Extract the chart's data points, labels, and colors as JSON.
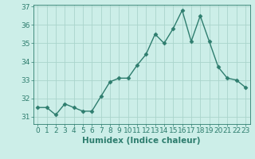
{
  "x": [
    0,
    1,
    2,
    3,
    4,
    5,
    6,
    7,
    8,
    9,
    10,
    11,
    12,
    13,
    14,
    15,
    16,
    17,
    18,
    19,
    20,
    21,
    22,
    23
  ],
  "y": [
    31.5,
    31.5,
    31.1,
    31.7,
    31.5,
    31.3,
    31.3,
    32.1,
    32.9,
    33.1,
    33.1,
    33.8,
    34.4,
    35.5,
    35.0,
    35.8,
    36.8,
    35.1,
    36.5,
    35.1,
    33.7,
    33.1,
    33.0,
    32.6
  ],
  "line_color": "#2e7d6e",
  "marker": "D",
  "marker_size": 2.5,
  "bg_color": "#cceee8",
  "grid_color": "#aad4cc",
  "xlabel": "Humidex (Indice chaleur)",
  "ylim": [
    30.6,
    37.1
  ],
  "xlim": [
    -0.5,
    23.5
  ],
  "yticks": [
    31,
    32,
    33,
    34,
    35,
    36,
    37
  ],
  "xticks": [
    0,
    1,
    2,
    3,
    4,
    5,
    6,
    7,
    8,
    9,
    10,
    11,
    12,
    13,
    14,
    15,
    16,
    17,
    18,
    19,
    20,
    21,
    22,
    23
  ],
  "xlabel_fontsize": 7.5,
  "tick_fontsize": 6.5,
  "line_width": 1.0
}
